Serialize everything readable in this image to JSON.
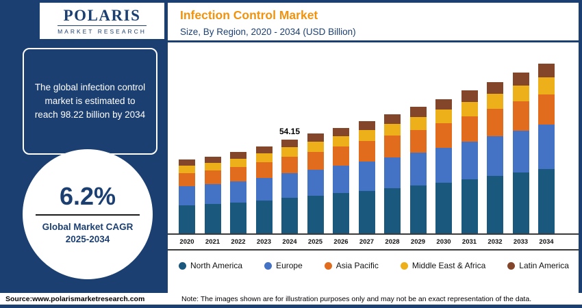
{
  "brand": {
    "logo_name": "POLARIS",
    "logo_subtitle": "MARKET RESEARCH"
  },
  "sidebar": {
    "estimate_text": "The global infection control market is estimated to reach 98.22 billion by 2034",
    "cagr_value": "6.2%",
    "cagr_line1": "Global Market CAGR",
    "cagr_line2": "2025-2034",
    "source": "Source:www.polarismarketresearch.com"
  },
  "header": {
    "title": "Infection Control Market",
    "subtitle": "Size, By Region, 2020 - 2034 (USD Billion)"
  },
  "footer": {
    "note": "Note: The images shown are for illustration purposes only and may not be an exact representation of the data."
  },
  "colors": {
    "background_navy": "#1c3f72",
    "title_orange": "#f0930f",
    "north_america": "#1b587e",
    "europe": "#4472c4",
    "asia_pacific": "#e16c1e",
    "middle_east_africa": "#edb01a",
    "latin_america": "#84462b"
  },
  "chart_data": {
    "type": "bar",
    "stacked": true,
    "title": "Infection Control Market",
    "subtitle": "Size, By Region, 2020 - 2034 (USD Billion)",
    "ylabel": "USD Billion",
    "ylim": [
      0,
      100
    ],
    "grid": false,
    "legend_position": "bottom",
    "categories": [
      "2020",
      "2021",
      "2022",
      "2023",
      "2024",
      "2025",
      "2026",
      "2027",
      "2028",
      "2029",
      "2030",
      "2031",
      "2032",
      "2033",
      "2034"
    ],
    "series": [
      {
        "name": "North America",
        "color": "#1b587e",
        "values": [
          16.2,
          16.9,
          17.9,
          19.1,
          20.6,
          21.9,
          23.2,
          24.7,
          26.2,
          27.8,
          29.5,
          31.4,
          33.3,
          35.4,
          37.3
        ]
      },
      {
        "name": "Europe",
        "color": "#4472c4",
        "values": [
          11.0,
          11.6,
          12.2,
          13.1,
          14.1,
          15.0,
          15.9,
          16.9,
          17.9,
          19.0,
          20.2,
          21.5,
          22.8,
          24.2,
          25.5
        ]
      },
      {
        "name": "Asia Pacific",
        "color": "#e16c1e",
        "values": [
          7.7,
          8.0,
          8.5,
          9.1,
          9.7,
          10.4,
          11.0,
          11.7,
          12.4,
          13.2,
          14.0,
          14.9,
          15.8,
          16.8,
          17.7
        ]
      },
      {
        "name": "Middle East & Africa",
        "color": "#edb01a",
        "values": [
          4.3,
          4.4,
          4.7,
          5.0,
          5.4,
          5.8,
          6.1,
          6.5,
          6.9,
          7.3,
          7.8,
          8.3,
          8.8,
          9.3,
          9.8
        ]
      },
      {
        "name": "Latin America",
        "color": "#84462b",
        "values": [
          3.4,
          3.6,
          3.8,
          4.0,
          4.3,
          4.6,
          4.9,
          5.2,
          5.5,
          5.9,
          6.2,
          6.6,
          7.0,
          7.4,
          7.9
        ]
      }
    ],
    "totals": [
      42.6,
      44.5,
      47.1,
      50.3,
      54.15,
      57.7,
      61.1,
      65.0,
      68.9,
      73.2,
      77.7,
      82.7,
      87.7,
      93.1,
      98.22
    ],
    "annotation": {
      "category": "2024",
      "label": "54.15"
    }
  }
}
